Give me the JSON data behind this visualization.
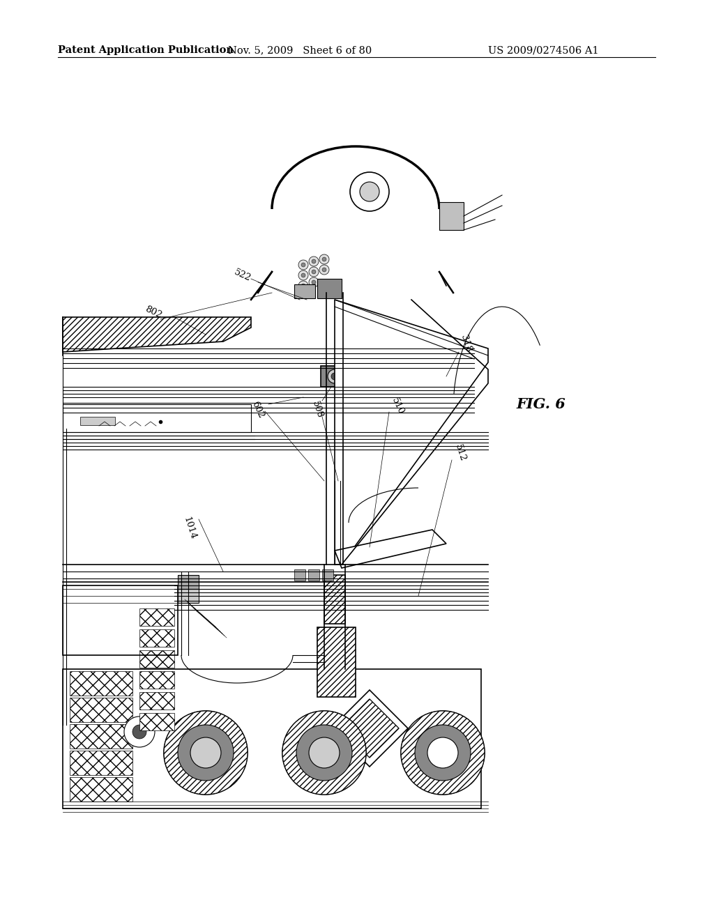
{
  "header_left": "Patent Application Publication",
  "header_mid": "Nov. 5, 2009   Sheet 6 of 80",
  "header_right": "US 2009/0274506 A1",
  "figure_label": "FIG. 6",
  "bg_color": "#ffffff",
  "line_color": "#000000",
  "text_color": "#000000",
  "header_fontsize": 10.5,
  "label_fontsize": 9.5,
  "fig6_fontsize": 15
}
